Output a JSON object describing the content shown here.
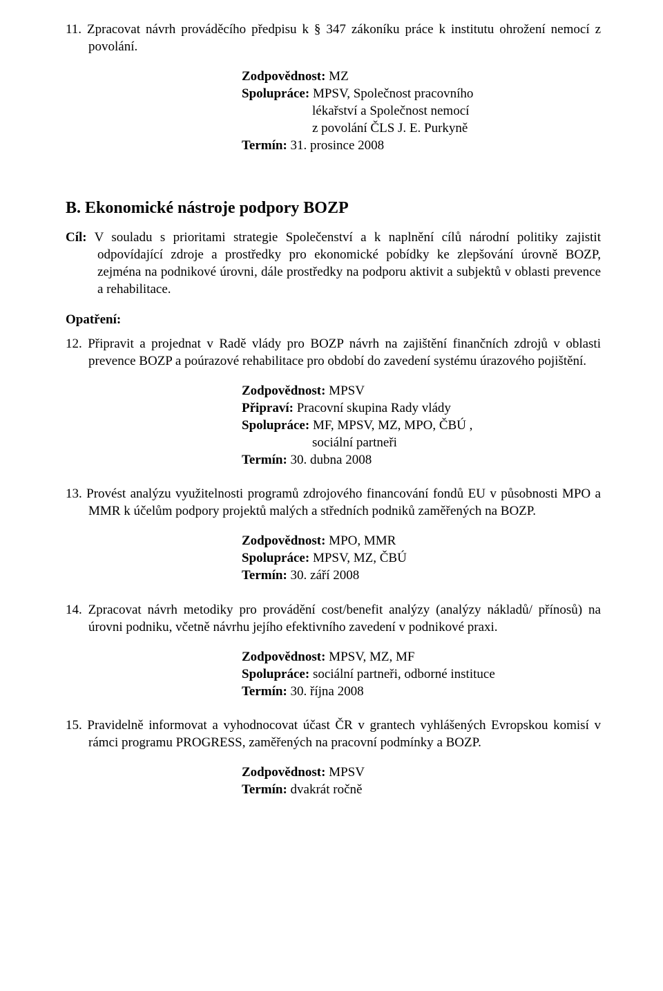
{
  "item11": {
    "text": "11. Zpracovat návrh prováděcího předpisu k § 347 zákoníku práce k institutu ohrožení nemocí z povolání.",
    "resp_label": "Zodpovědnost:",
    "resp_val": " MZ",
    "coop_label": "Spolupráce:",
    "coop_val": " MPSV, Společnost pracovního",
    "coop_line2": "lékařství a Společnost nemocí",
    "coop_line3": "z povolání ČLS J. E. Purkyně",
    "term_label": "Termín:",
    "term_val": " 31. prosince 2008"
  },
  "sectionB": {
    "heading": "B. Ekonomické nástroje podpory BOZP",
    "cil_label": "Cíl:",
    "cil_text": "  V souladu s prioritami strategie Společenství a k naplnění cílů národní politiky zajistit odpovídající zdroje a prostředky pro ekonomické pobídky ke zlepšování úrovně  BOZP, zejména na podnikové úrovni, dále prostředky na podporu aktivit a subjektů v oblasti prevence a rehabilitace.",
    "opatreni": "Opatření:"
  },
  "item12": {
    "text": "12. Připravit a projednat v Radě vlády pro BOZP návrh na zajištění finančních zdrojů v oblasti prevence BOZP a poúrazové rehabilitace pro období do zavedení systému úrazového pojištění.",
    "resp_label": "Zodpovědnost:",
    "resp_val": " MPSV",
    "prep_label": "Připraví:",
    "prep_val": " Pracovní skupina Rady vlády",
    "coop_label": "Spolupráce:",
    "coop_val": " MF, MPSV, MZ, MPO, ČBÚ ,",
    "coop_line2": "sociální partneři",
    "term_label": "Termín:",
    "term_val": "  30. dubna 2008"
  },
  "item13": {
    "text": "13. Provést analýzu využitelnosti programů zdrojového financování fondů EU v působnosti MPO a MMR k účelům podpory projektů malých a středních podniků zaměřených na BOZP.",
    "resp_label": "Zodpovědnost:",
    "resp_val": " MPO, MMR",
    "coop_label": "Spolupráce:",
    "coop_val": " MPSV, MZ, ČBÚ",
    "term_label": "Termín:",
    "term_val": " 30. září 2008"
  },
  "item14": {
    "text": "14. Zpracovat návrh metodiky pro provádění  cost/benefit analýzy (analýzy nákladů/ přínosů) na úrovni podniku, včetně návrhu jejího efektivního zavedení v podnikové praxi.",
    "resp_label": "Zodpovědnost:",
    "resp_val": " MPSV, MZ, MF",
    "coop_label": "Spolupráce:",
    "coop_val": " sociální partneři, odborné instituce",
    "term_label": "Termín:",
    "term_val": " 30. října 2008"
  },
  "item15": {
    "text": "15. Pravidelně informovat a vyhodnocovat účast ČR v  grantech vyhlášených Evropskou komisí v rámci programu PROGRESS, zaměřených na pracovní podmínky a BOZP.",
    "resp_label": "Zodpovědnost:",
    "resp_val": " MPSV",
    "term_label": "Termín:",
    "term_val": " dvakrát ročně"
  }
}
